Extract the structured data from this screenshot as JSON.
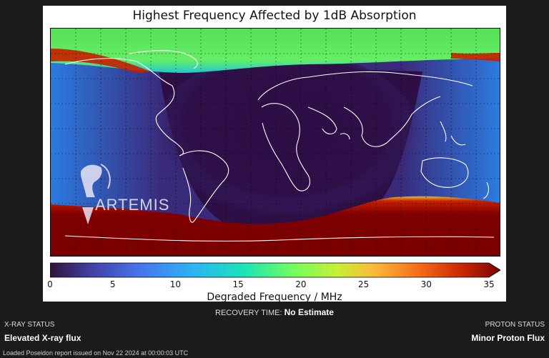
{
  "map": {
    "title": "Highest Frequency Affected by 1dB Absorption",
    "logo_text": "ARTEMIS",
    "colorbar": {
      "label": "Degraded Frequency / MHz",
      "ticks": [
        "0",
        "5",
        "10",
        "15",
        "20",
        "25",
        "30",
        "35"
      ],
      "min": 0,
      "max": 35
    }
  },
  "recovery": {
    "label": "RECOVERY TIME:",
    "value": "No Estimate"
  },
  "xray": {
    "caption": "X-RAY STATUS",
    "value": "Elevated X-ray flux"
  },
  "proton": {
    "caption": "PROTON STATUS",
    "value": "Minor Proton Flux"
  },
  "footer": {
    "text": "Loaded Poseidon report issued on Nov 22 2024 at 00:00:03 UTC"
  }
}
